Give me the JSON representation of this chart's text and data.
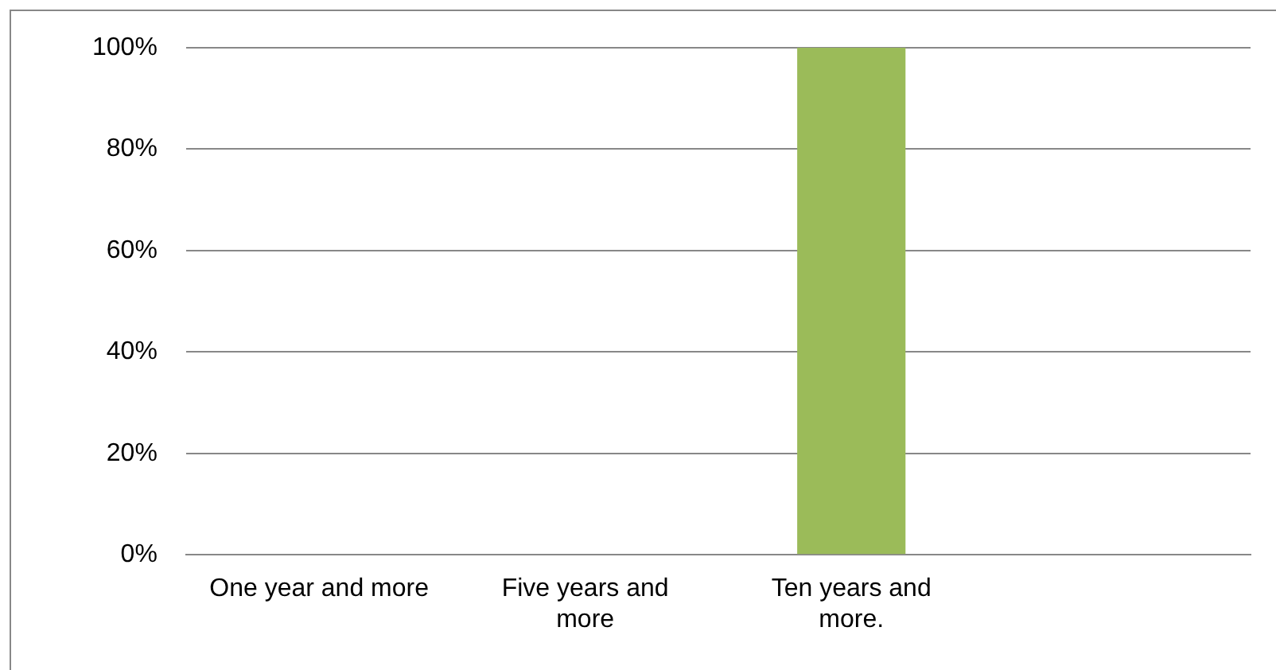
{
  "chart_data": {
    "type": "bar",
    "categories": [
      "One year and more",
      "Five years and more",
      "Ten years and more.",
      null
    ],
    "values": [
      0,
      0,
      100,
      0
    ],
    "color": "#9bbb59",
    "ylim": [
      0,
      100
    ],
    "yticks": [
      {
        "value": 0,
        "label": "0%"
      },
      {
        "value": 20,
        "label": "20%"
      },
      {
        "value": 40,
        "label": "40%"
      },
      {
        "value": 60,
        "label": "60%"
      },
      {
        "value": 80,
        "label": "80%"
      },
      {
        "value": 100,
        "label": "100%"
      }
    ],
    "grid": "y",
    "legend": false
  }
}
